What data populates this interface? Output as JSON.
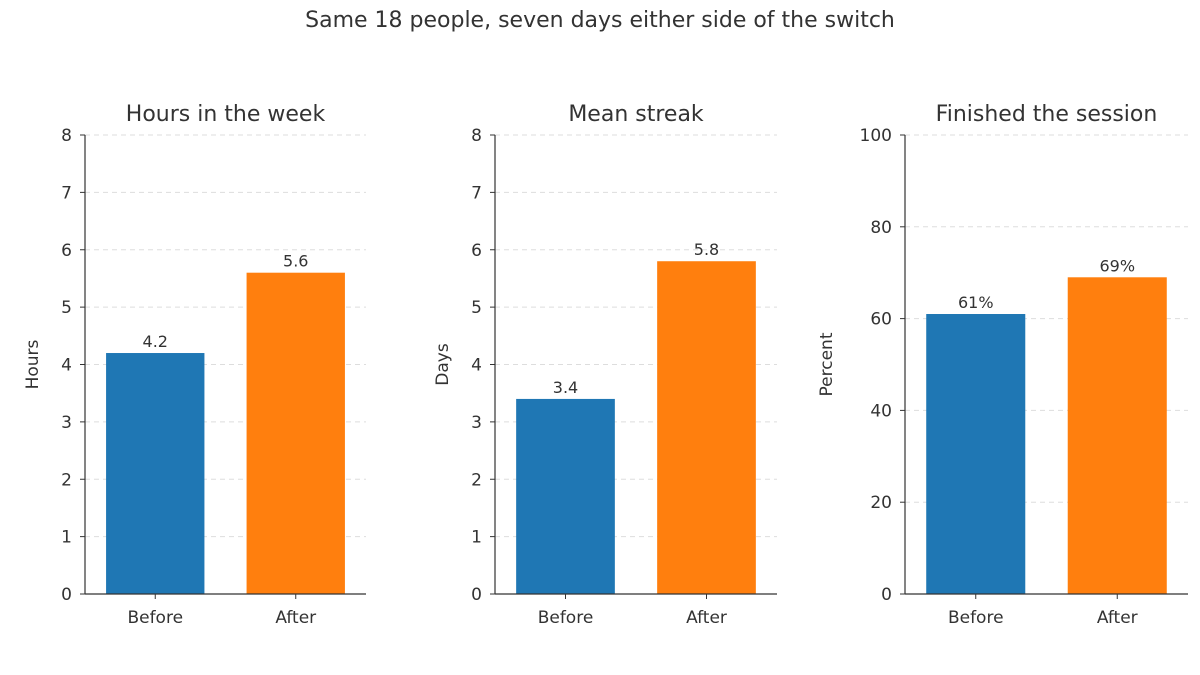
{
  "suptitle": "Same 18 people, seven days either side of the switch",
  "colors": {
    "before": "#1f77b4",
    "after": "#ff7f0e",
    "axis": "#333333",
    "grid": "#dddddd"
  },
  "chart_data": [
    {
      "type": "bar",
      "title": "Hours in the week",
      "ylabel": "Hours",
      "categories": [
        "Before",
        "After"
      ],
      "values": [
        4.2,
        5.6
      ],
      "value_labels": [
        "4.2",
        "5.6"
      ],
      "ylim": [
        0,
        8
      ],
      "yticks": [
        0,
        1,
        2,
        3,
        4,
        5,
        6,
        7,
        8
      ],
      "grid": "y-dashed"
    },
    {
      "type": "bar",
      "title": "Mean streak",
      "ylabel": "Days",
      "categories": [
        "Before",
        "After"
      ],
      "values": [
        3.4,
        5.8
      ],
      "value_labels": [
        "3.4",
        "5.8"
      ],
      "ylim": [
        0,
        8
      ],
      "yticks": [
        0,
        1,
        2,
        3,
        4,
        5,
        6,
        7,
        8
      ],
      "grid": "y-dashed"
    },
    {
      "type": "bar",
      "title": "Finished the session",
      "ylabel": "Percent",
      "categories": [
        "Before",
        "After"
      ],
      "values": [
        61,
        69
      ],
      "value_labels": [
        "61%",
        "69%"
      ],
      "ylim": [
        0,
        100
      ],
      "yticks": [
        0,
        20,
        40,
        60,
        80,
        100
      ],
      "grid": "y-dashed"
    }
  ]
}
